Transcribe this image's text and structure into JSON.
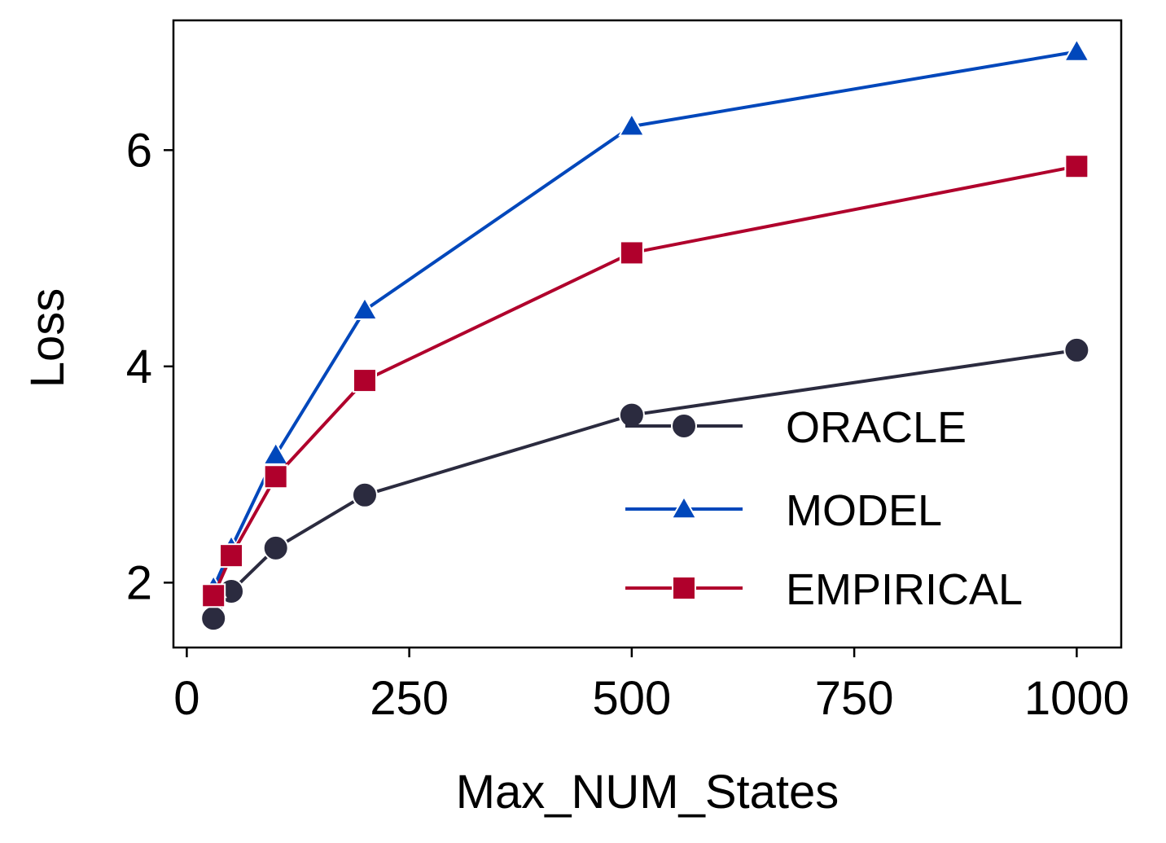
{
  "chart_data": {
    "type": "line",
    "title": "",
    "xlabel": "Max_NUM_States",
    "ylabel": "Loss",
    "xlim": [
      -15,
      1050
    ],
    "ylim": [
      1.4,
      7.2
    ],
    "xticks": [
      0,
      250,
      500,
      750,
      1000
    ],
    "xtick_labels": [
      "0",
      "250",
      "500",
      "750",
      "1000"
    ],
    "yticks": [
      2,
      4,
      6
    ],
    "ytick_labels": [
      "2",
      "4",
      "6"
    ],
    "grid": false,
    "legend_position": "lower-right",
    "x": [
      30,
      50,
      100,
      200,
      500,
      1000
    ],
    "series": [
      {
        "name": "ORACLE",
        "color": "#2b2b3f",
        "marker": "circle",
        "values": [
          1.67,
          1.92,
          2.32,
          2.81,
          3.55,
          4.15
        ]
      },
      {
        "name": "MODEL",
        "color": "#0047bb",
        "marker": "triangle",
        "values": [
          1.95,
          2.32,
          3.18,
          4.52,
          6.22,
          6.91
        ]
      },
      {
        "name": "EMPIRICAL",
        "color": "#b0002c",
        "marker": "square",
        "values": [
          1.88,
          2.25,
          2.98,
          3.87,
          5.05,
          5.85
        ]
      }
    ]
  }
}
